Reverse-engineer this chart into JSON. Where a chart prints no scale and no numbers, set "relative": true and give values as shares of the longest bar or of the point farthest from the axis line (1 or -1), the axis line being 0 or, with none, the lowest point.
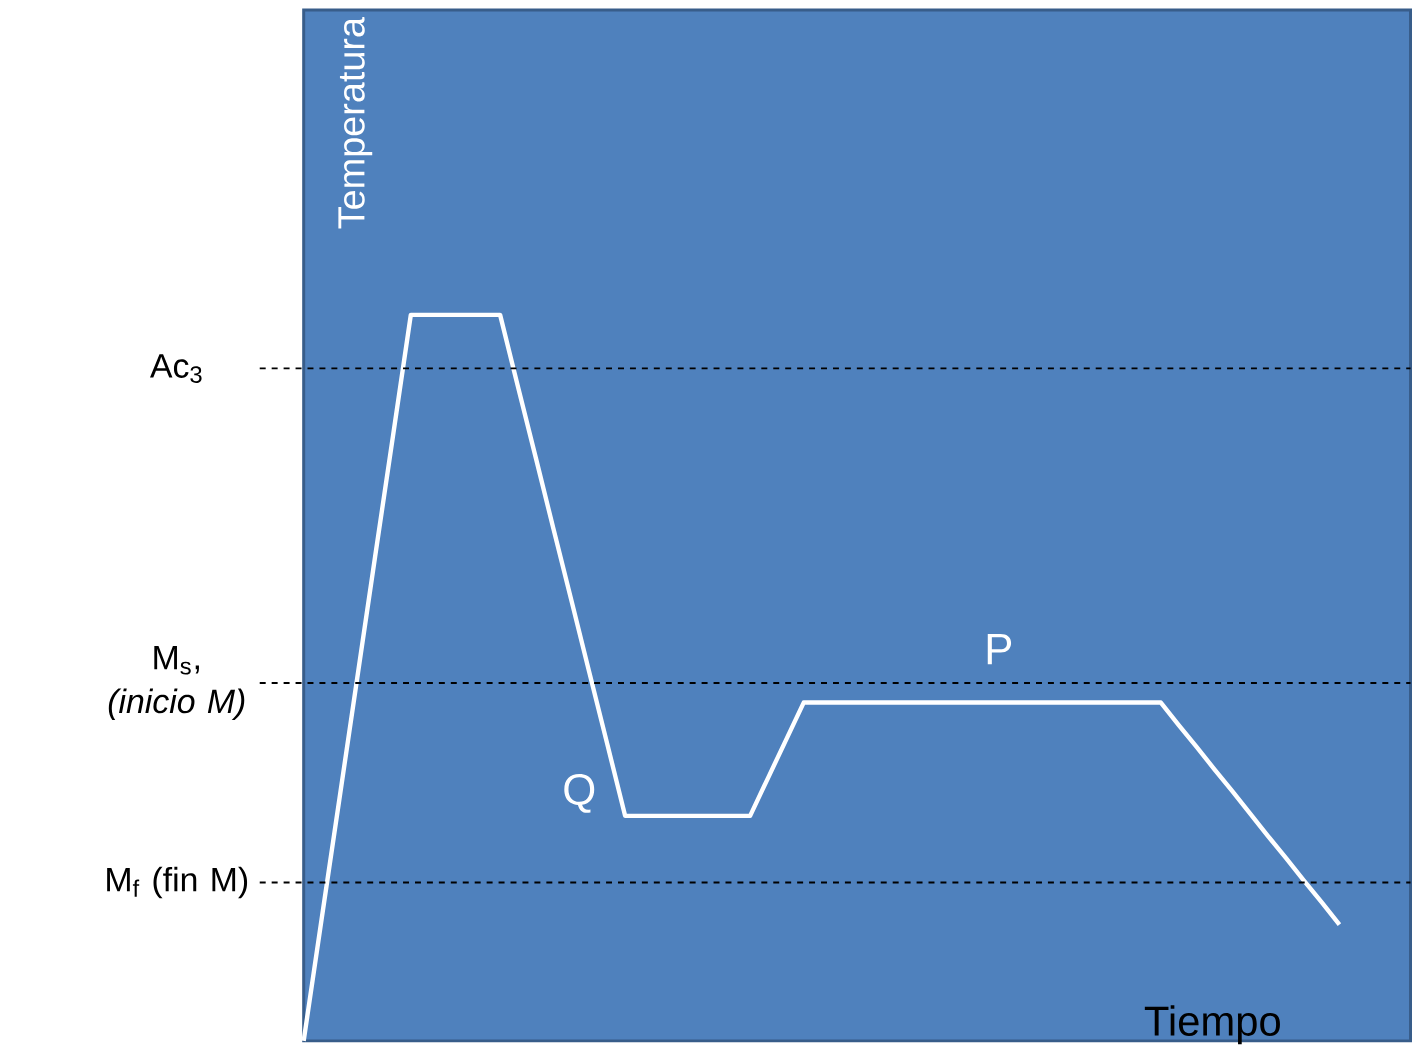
{
  "chart_data": {
    "type": "line",
    "relative": true,
    "xlabel": "Tiempo",
    "ylabel": "Temperatura",
    "categories": [
      null,
      null,
      null,
      null,
      null,
      null,
      null,
      null,
      null,
      null,
      null,
      null,
      null,
      null,
      null,
      null,
      null,
      null,
      null,
      null,
      null,
      null,
      null,
      null,
      null,
      null,
      null,
      null,
      null,
      null,
      null,
      null,
      null,
      null,
      null,
      null,
      null,
      null,
      null,
      null,
      null,
      null,
      null,
      null,
      null,
      null,
      null,
      null,
      null,
      null,
      null,
      null,
      null,
      null,
      null,
      null,
      null,
      null,
      null,
      null,
      null
    ],
    "series": [
      {
        "color": "#ffffff",
        "values": [
          0,
          0.167,
          0.333,
          0.5,
          0.667,
          0.833,
          1,
          1,
          1,
          1,
          1,
          1,
          0.901,
          0.803,
          0.704,
          0.606,
          0.507,
          0.409,
          0.31,
          0.31,
          0.31,
          0.31,
          0.31,
          0.31,
          0.31,
          0.31,
          0.362,
          0.414,
          0.466,
          0.466,
          0.466,
          0.466,
          0.466,
          0.466,
          0.466,
          0.466,
          0.466,
          0.466,
          0.466,
          0.466,
          0.466,
          0.466,
          0.466,
          0.466,
          0.466,
          0.466,
          0.466,
          0.466,
          0.466,
          0.435,
          0.405,
          0.374,
          0.344,
          0.313,
          0.282,
          0.252,
          0.221,
          0.191,
          0.16,
          null,
          null
        ]
      }
    ],
    "ref_lines": [
      {
        "axis": "y",
        "value": 0.926,
        "label": "Ac$_{3}$",
        "color": "#000000",
        "line_style": "dashed"
      },
      {
        "axis": "y",
        "value": 0.493,
        "label": "M$_{s}$, *(inicio M)*",
        "color": "#000000",
        "line_style": "dashed"
      },
      {
        "axis": "y",
        "value": 0.218,
        "label": "M$_{f}$ (fin M)",
        "color": "#000000",
        "line_style": "dashed"
      }
    ],
    "annotations": [
      "Q",
      "P"
    ],
    "marker": "none",
    "line_style": "solid"
  }
}
